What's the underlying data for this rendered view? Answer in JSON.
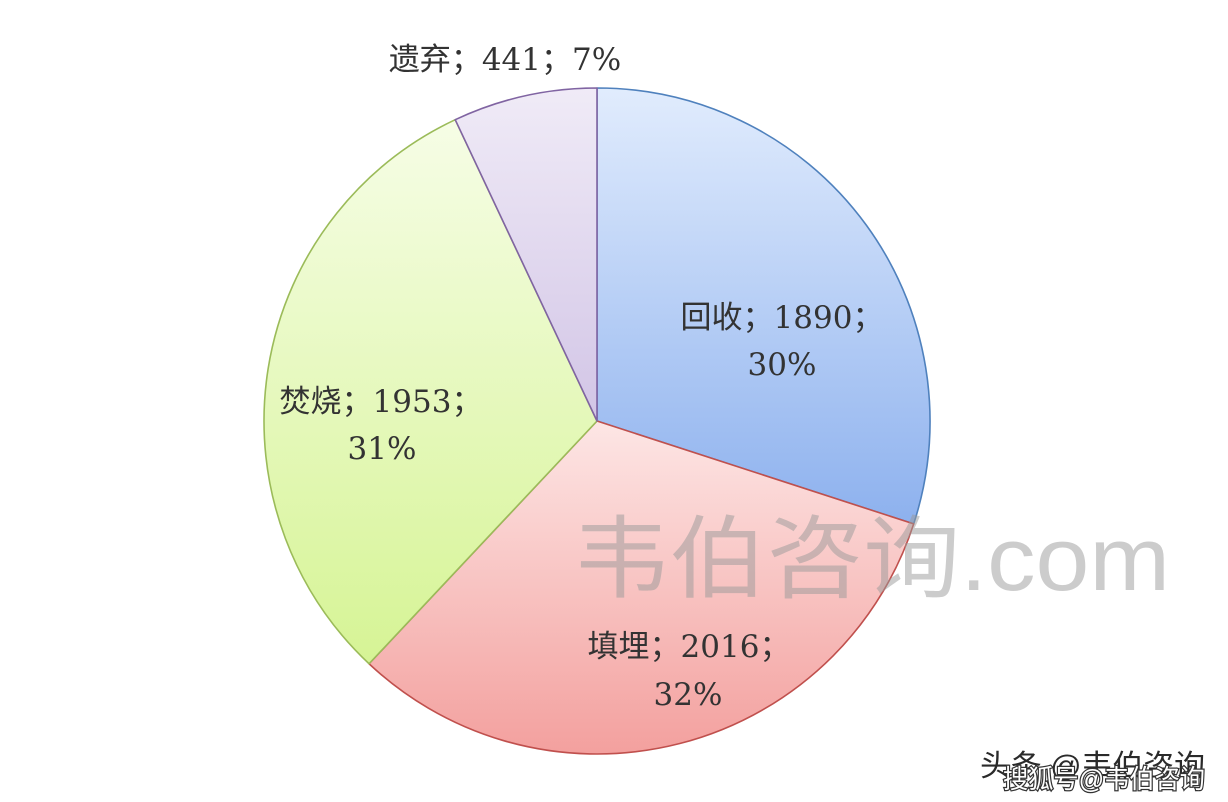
{
  "chart_data": {
    "type": "pie",
    "label_separator": "；",
    "slices": [
      {
        "name": "回收",
        "value": 1890,
        "percent": "30%",
        "color_light": "#e1ecfd",
        "color_dark": "#8db1ee",
        "stroke": "#4f81bd"
      },
      {
        "name": "填埋",
        "value": 2016,
        "percent": "32%",
        "color_light": "#fde6e5",
        "color_dark": "#f3a09e",
        "stroke": "#c0504d"
      },
      {
        "name": "焚烧",
        "value": 1953,
        "percent": "31%",
        "color_light": "#f6fde6",
        "color_dark": "#d6f495",
        "stroke": "#9bbb59"
      },
      {
        "name": "遗弃",
        "value": 441,
        "percent": "7%",
        "color_light": "#f0ebf7",
        "color_dark": "#d2c5e6",
        "stroke": "#8064a2"
      }
    ]
  },
  "watermarks": {
    "site": "韦伯咨询.com",
    "toutiao": "头条 @韦伯咨询",
    "sohu": "搜狐号@韦伯咨询"
  },
  "colors": {
    "background": "#ffffff",
    "label_text": "#333333",
    "watermark": "#c8c8c8"
  }
}
